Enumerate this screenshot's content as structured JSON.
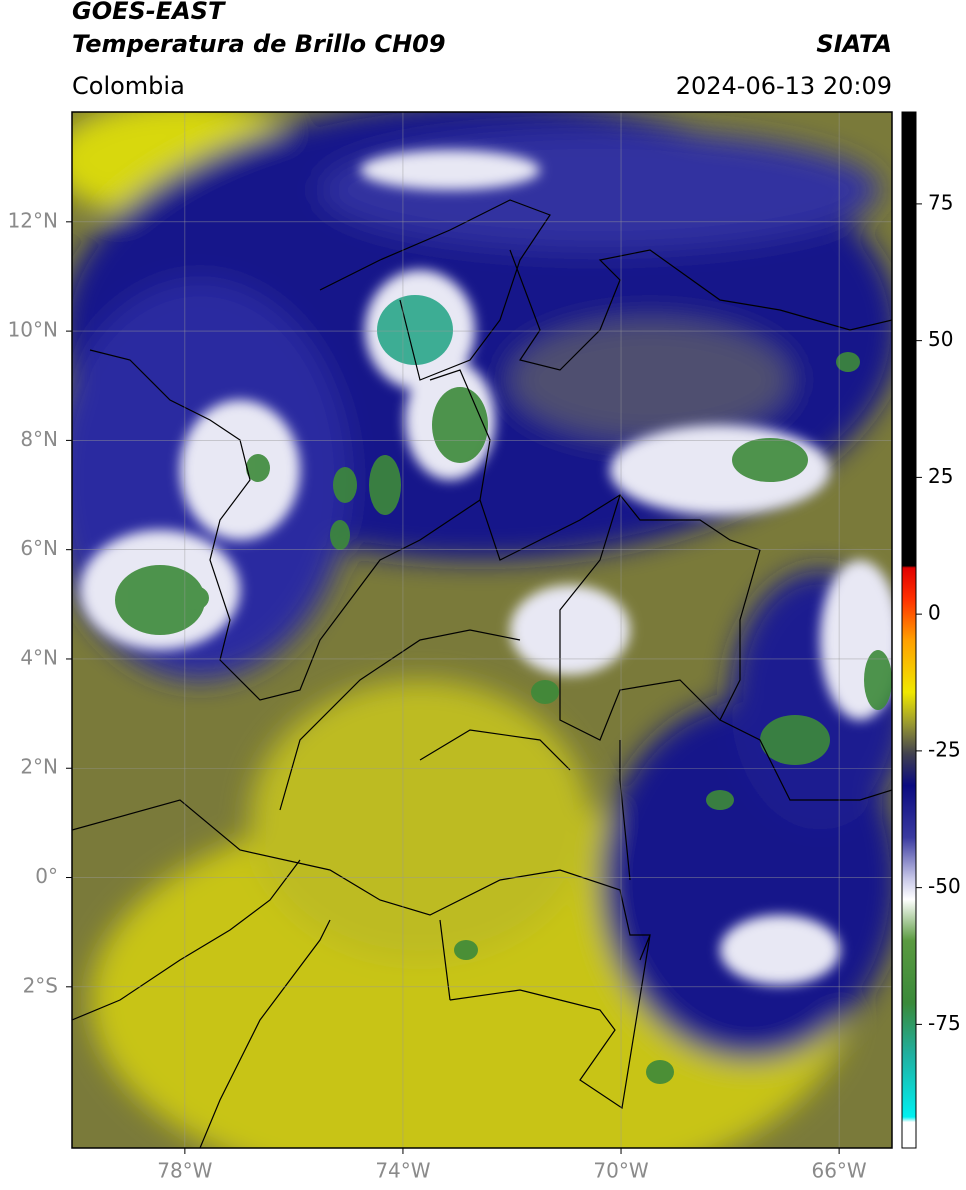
{
  "header": {
    "title": "GOES-EAST",
    "subtitle": "Temperatura de Brillo CH09",
    "source": "SIATA",
    "region": "Colombia",
    "datetime": "2024-06-13 20:09"
  },
  "map": {
    "xlim": [
      -80.07,
      -65.03
    ],
    "ylim": [
      -4.95,
      14.01
    ],
    "xticks": [
      {
        "value": -78,
        "label": "78°W"
      },
      {
        "value": -74,
        "label": "74°W"
      },
      {
        "value": -70,
        "label": "70°W"
      },
      {
        "value": -66,
        "label": "66°W"
      }
    ],
    "yticks": [
      {
        "value": 12,
        "label": "12°N"
      },
      {
        "value": 10,
        "label": "10°N"
      },
      {
        "value": 8,
        "label": "8°N"
      },
      {
        "value": 6,
        "label": "6°N"
      },
      {
        "value": 4,
        "label": "4°N"
      },
      {
        "value": 2,
        "label": "2°N"
      },
      {
        "value": 0,
        "label": "0°"
      },
      {
        "value": -2,
        "label": "2°S"
      }
    ]
  },
  "colorbar": {
    "lim": [
      -97.6,
      91.8
    ],
    "ticks": [
      75,
      50,
      25,
      0,
      -25,
      -50,
      -75
    ]
  }
}
